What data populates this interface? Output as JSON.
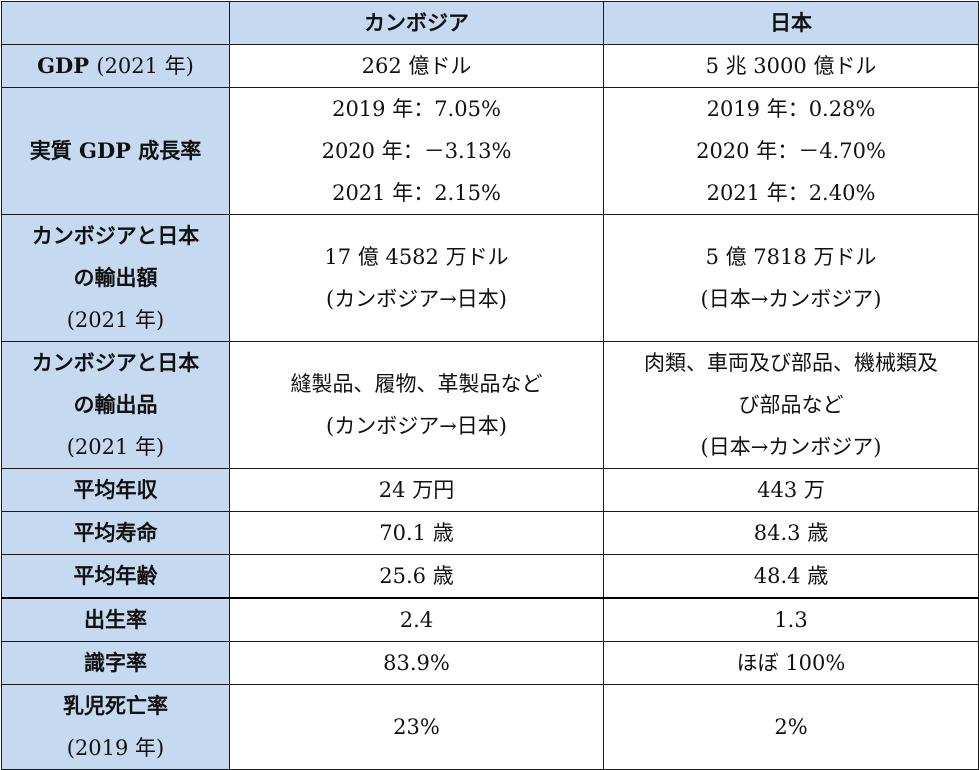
{
  "table": {
    "header": {
      "corner": "",
      "col1": "カンボジア",
      "col2": "日本"
    },
    "rows": [
      {
        "label": [
          "GDP ",
          "(2021 年)"
        ],
        "cambodia": [
          "262 億ドル"
        ],
        "japan": [
          "5 兆 3000 億ドル"
        ]
      },
      {
        "label": [
          "実質 GDP 成長率"
        ],
        "cambodia": [
          "2019 年：7.05%",
          "2020 年：－3.13%",
          "2021 年：2.15%"
        ],
        "japan": [
          "2019 年：0.28%",
          "2020 年：－4.70%",
          "2021 年：2.40%"
        ]
      },
      {
        "label": [
          "カンボジアと日本",
          "の輸出額",
          "(2021 年)"
        ],
        "cambodia": [
          "17 億 4582 万ドル",
          "(カンボジア→日本)"
        ],
        "japan": [
          "5 億 7818 万ドル",
          "(日本→カンボジア)"
        ]
      },
      {
        "label": [
          "カンボジアと日本",
          "の輸出品",
          "(2021 年)"
        ],
        "cambodia": [
          "縫製品、履物、革製品など",
          "(カンボジア→日本)"
        ],
        "japan": [
          "肉類、車両及び部品、機械類及",
          "び部品など",
          "(日本→カンボジア)"
        ]
      },
      {
        "label": [
          "平均年収"
        ],
        "cambodia": [
          "24 万円"
        ],
        "japan": [
          "443 万"
        ]
      },
      {
        "label": [
          "平均寿命"
        ],
        "cambodia": [
          "70.1 歳"
        ],
        "japan": [
          "84.3 歳"
        ]
      },
      {
        "label": [
          "平均年齢"
        ],
        "cambodia": [
          "25.6 歳"
        ],
        "japan": [
          "48.4 歳"
        ]
      },
      {
        "label": [
          "出生率"
        ],
        "cambodia": [
          "2.4"
        ],
        "japan": [
          "1.3"
        ]
      },
      {
        "label": [
          "識字率"
        ],
        "cambodia": [
          "83.9%"
        ],
        "japan": [
          "ほぼ 100%"
        ]
      },
      {
        "label": [
          "乳児死亡率",
          "(2019 年)"
        ],
        "cambodia": [
          "23%"
        ],
        "japan": [
          "2%"
        ]
      }
    ]
  },
  "colors": {
    "header_fill": "#c5d9f0",
    "border": "#1a1a1a"
  }
}
